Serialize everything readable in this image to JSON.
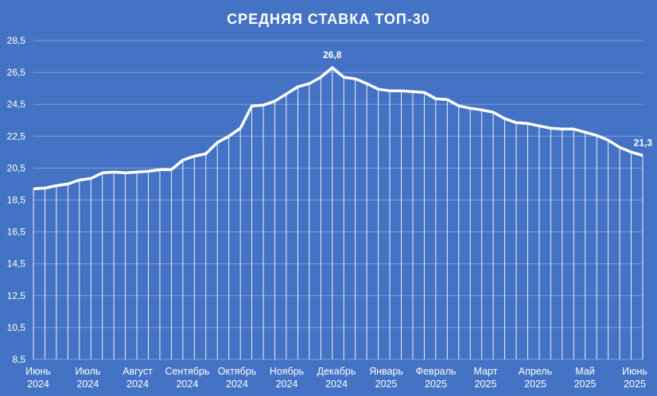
{
  "chart_data": {
    "type": "line",
    "title": "СРЕДНЯЯ СТАВКА ТОП-30",
    "xlabel": "",
    "ylabel": "",
    "ylim": [
      8.5,
      28.5
    ],
    "yticks": [
      "8,5",
      "10,5",
      "12,5",
      "14,5",
      "16,5",
      "18,5",
      "20,5",
      "22,5",
      "24,5",
      "26,5",
      "28,5"
    ],
    "x_month_labels": [
      {
        "month": "Июнь",
        "year": "2024"
      },
      {
        "month": "Июль",
        "year": "2024"
      },
      {
        "month": "Август",
        "year": "2024"
      },
      {
        "month": "Сентябрь",
        "year": "2024"
      },
      {
        "month": "Октябрь",
        "year": "2024"
      },
      {
        "month": "Ноябрь",
        "year": "2024"
      },
      {
        "month": "Декабрь",
        "year": "2024"
      },
      {
        "month": "Январь",
        "year": "2025"
      },
      {
        "month": "Февраль",
        "year": "2025"
      },
      {
        "month": "Март",
        "year": "2025"
      },
      {
        "month": "Апрель",
        "year": "2025"
      },
      {
        "month": "Май",
        "year": "2025"
      },
      {
        "month": "Июнь",
        "year": "2025"
      }
    ],
    "grid": true,
    "vertical_droplines": true,
    "series": [
      {
        "values": [
          19.2,
          19.25,
          19.4,
          19.5,
          19.75,
          19.85,
          20.2,
          20.25,
          20.2,
          20.25,
          20.3,
          20.4,
          20.4,
          21.0,
          21.25,
          21.4,
          22.1,
          22.5,
          23.0,
          24.4,
          24.45,
          24.7,
          25.15,
          25.6,
          25.8,
          26.2,
          26.8,
          26.2,
          26.1,
          25.8,
          25.45,
          25.35,
          25.35,
          25.3,
          25.25,
          24.85,
          24.8,
          24.4,
          24.25,
          24.15,
          24.0,
          23.6,
          23.35,
          23.3,
          23.15,
          23.0,
          22.95,
          22.95,
          22.75,
          22.55,
          22.25,
          21.8,
          21.5,
          21.3
        ]
      }
    ],
    "data_labels": [
      {
        "index": 26,
        "text": "26,8"
      },
      {
        "index": 53,
        "text": "21,3"
      }
    ],
    "colors": {
      "background": "#4472c4",
      "line": "#ffffff",
      "grid": "#7f9fd6",
      "dropline": "#ffffff"
    }
  }
}
